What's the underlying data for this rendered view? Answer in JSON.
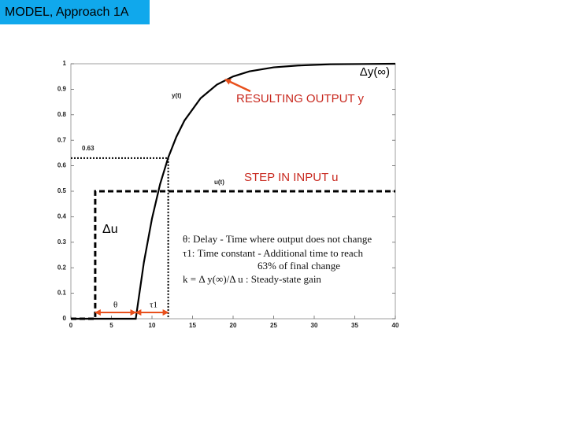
{
  "header": {
    "title": "MODEL, Approach 1A"
  },
  "chart_data": {
    "type": "line",
    "xlim": [
      0,
      40
    ],
    "ylim": [
      0,
      1
    ],
    "xticks": [
      0,
      5,
      10,
      15,
      20,
      25,
      30,
      35,
      40
    ],
    "yticks": [
      0,
      0.1,
      0.2,
      0.3,
      0.4,
      0.5,
      0.6,
      0.7,
      0.8,
      0.9,
      1
    ],
    "series": [
      {
        "name": "y(t)",
        "color": "#000000",
        "dash": false,
        "x": [
          0,
          8,
          9,
          10,
          11,
          12,
          13,
          14,
          16,
          18,
          20,
          22,
          25,
          28,
          32,
          36,
          40
        ],
        "values": [
          0,
          0,
          0.221,
          0.393,
          0.528,
          0.632,
          0.713,
          0.777,
          0.865,
          0.918,
          0.95,
          0.97,
          0.986,
          0.993,
          0.998,
          0.999,
          1
        ]
      },
      {
        "name": "u(t)",
        "color": "#000000",
        "dash": true,
        "x": [
          0,
          3,
          3,
          40
        ],
        "values": [
          0,
          0,
          0.5,
          0.5
        ]
      }
    ],
    "reference": {
      "x": 12,
      "y": 0.63,
      "label": "0.63"
    },
    "delay": {
      "label": "θ",
      "from": 3,
      "to": 8
    },
    "time_constant": {
      "label": "τ1",
      "from": 8,
      "to": 12
    },
    "annotations": [
      "Δy(∞)",
      "RESULTING OUTPUT y",
      "STEP IN INPUT u",
      "Δu"
    ],
    "arrow_color": "#e8501c",
    "annotation_color": "#c8281e"
  },
  "notes": [
    "θ: Delay - Time where output does not change",
    "τ1: Time constant - Additional time to reach",
    "63% of final change",
    "k = Δ y(∞)/Δ u : Steady-state gain"
  ]
}
